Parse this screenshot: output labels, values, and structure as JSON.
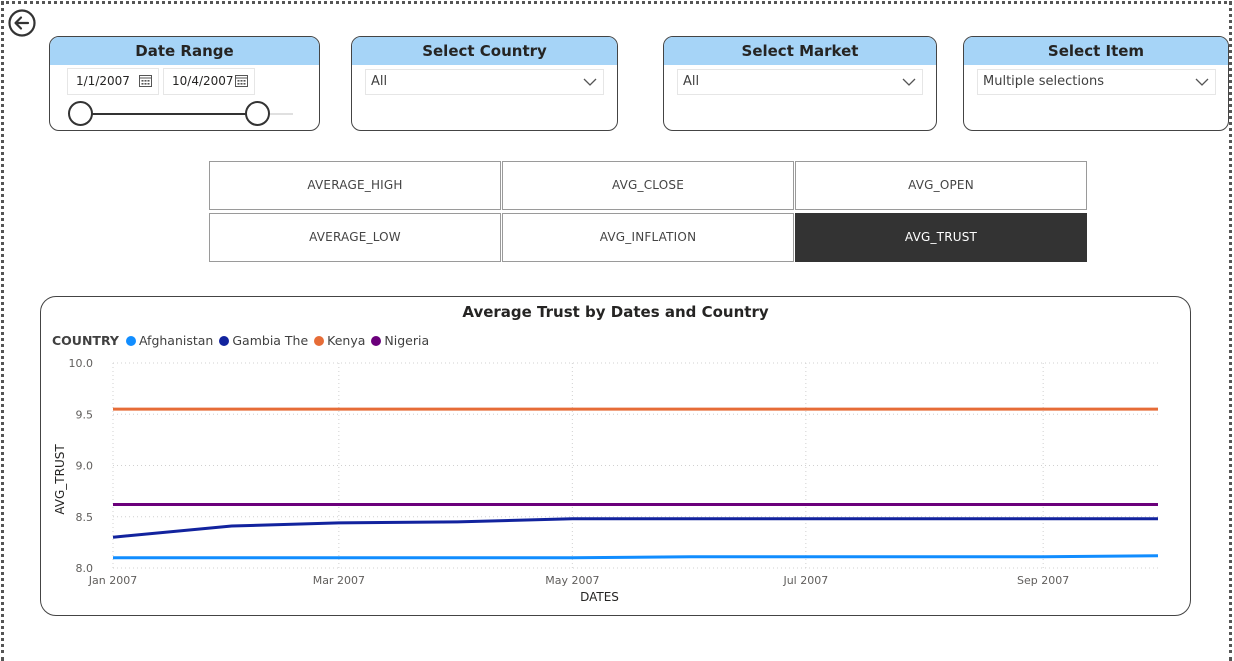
{
  "date_slicer": {
    "title": "Date Range",
    "start_date": "1/1/2007",
    "end_date": "10/4/2007"
  },
  "country_slicer": {
    "title": "Select Country",
    "value": "All"
  },
  "market_slicer": {
    "title": "Select Market",
    "value": "All"
  },
  "item_slicer": {
    "title": "Select Item",
    "value": "Multiple selections"
  },
  "measure_buttons": [
    {
      "label": "AVERAGE_HIGH",
      "active": false
    },
    {
      "label": "AVG_CLOSE",
      "active": false
    },
    {
      "label": "AVG_OPEN",
      "active": false
    },
    {
      "label": "AVERAGE_LOW",
      "active": false
    },
    {
      "label": "AVG_INFLATION",
      "active": false
    },
    {
      "label": "AVG_TRUST",
      "active": true
    }
  ],
  "icons": {
    "back": "back-arrow-icon",
    "calendar": "calendar-icon",
    "dropdown": "chevron-down-icon"
  },
  "colors": {
    "slicer_header": "#a6d4f7",
    "active_button": "#333333"
  },
  "chart_data": {
    "type": "line",
    "title": "Average Trust by Dates and Country",
    "legend_title": "COUNTRY",
    "legend_position": "top-left",
    "xlabel": "DATES",
    "ylabel": "AVG_TRUST",
    "x_ticks": [
      "Jan 2007",
      "Mar 2007",
      "May 2007",
      "Jul 2007",
      "Sep 2007"
    ],
    "y_ticks": [
      "8.0",
      "8.5",
      "9.0",
      "9.5",
      "10.0"
    ],
    "ylim": [
      8.0,
      10.0
    ],
    "grid": true,
    "x": [
      "2007-01-01",
      "2007-02-01",
      "2007-03-01",
      "2007-04-01",
      "2007-05-01",
      "2007-06-01",
      "2007-07-01",
      "2007-08-01",
      "2007-09-01",
      "2007-10-01"
    ],
    "series": [
      {
        "name": "Afghanistan",
        "color": "#118dff",
        "values": [
          8.1,
          8.1,
          8.1,
          8.1,
          8.1,
          8.11,
          8.11,
          8.11,
          8.11,
          8.12
        ]
      },
      {
        "name": "Gambia The",
        "color": "#12239e",
        "values": [
          8.3,
          8.41,
          8.44,
          8.45,
          8.48,
          8.48,
          8.48,
          8.48,
          8.48,
          8.48
        ]
      },
      {
        "name": "Kenya",
        "color": "#e66c37",
        "values": [
          9.55,
          9.55,
          9.55,
          9.55,
          9.55,
          9.55,
          9.55,
          9.55,
          9.55,
          9.55
        ]
      },
      {
        "name": "Nigeria",
        "color": "#6b007b",
        "values": [
          8.62,
          8.62,
          8.62,
          8.62,
          8.62,
          8.62,
          8.62,
          8.62,
          8.62,
          8.62
        ]
      }
    ]
  }
}
